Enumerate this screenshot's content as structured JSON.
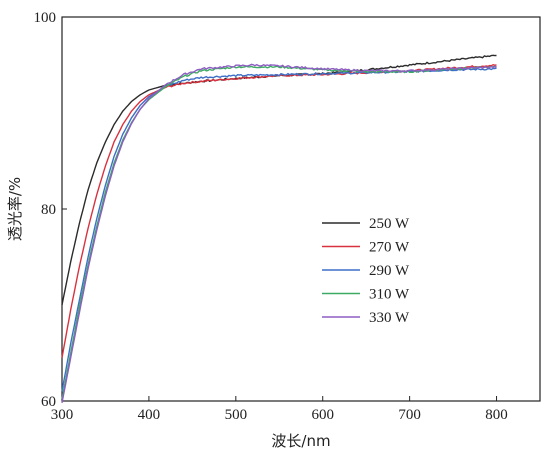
{
  "chart_data": {
    "type": "line",
    "xlabel": "波长/nm",
    "ylabel": "透光率/%",
    "xlim": [
      300,
      850
    ],
    "ylim": [
      60,
      100
    ],
    "xticks": [
      300,
      400,
      500,
      600,
      700,
      800
    ],
    "yticks": [
      60,
      80,
      100
    ],
    "grid": false,
    "legend_position": "center-right",
    "series": [
      {
        "name": "250 W",
        "color": "#2b2b2b",
        "x": [
          300,
          310,
          320,
          330,
          340,
          350,
          360,
          370,
          380,
          390,
          400,
          420,
          440,
          460,
          500,
          550,
          600,
          650,
          700,
          750,
          800
        ],
        "y": [
          70.0,
          74.5,
          78.5,
          82.0,
          84.8,
          87.0,
          88.8,
          90.2,
          91.2,
          91.9,
          92.4,
          92.9,
          93.1,
          93.3,
          93.6,
          93.9,
          94.1,
          94.5,
          95.0,
          95.5,
          96.0
        ]
      },
      {
        "name": "270 W",
        "color": "#d9323f",
        "x": [
          300,
          310,
          320,
          330,
          340,
          350,
          360,
          370,
          380,
          390,
          400,
          420,
          440,
          460,
          500,
          550,
          600,
          650,
          700,
          750,
          800
        ],
        "y": [
          64.5,
          69.5,
          74.0,
          78.0,
          81.5,
          84.5,
          87.0,
          88.8,
          90.2,
          91.2,
          91.9,
          92.7,
          93.1,
          93.3,
          93.6,
          93.9,
          94.0,
          94.2,
          94.4,
          94.7,
          95.0
        ]
      },
      {
        "name": "290 W",
        "color": "#3d6fc7",
        "x": [
          300,
          310,
          320,
          330,
          340,
          350,
          360,
          370,
          380,
          390,
          400,
          420,
          440,
          460,
          500,
          550,
          600,
          650,
          700,
          750,
          800
        ],
        "y": [
          61.0,
          66.0,
          70.5,
          75.0,
          79.0,
          82.5,
          85.5,
          87.8,
          89.5,
          90.8,
          91.7,
          92.8,
          93.4,
          93.7,
          93.9,
          94.0,
          94.1,
          94.2,
          94.3,
          94.5,
          94.6
        ]
      },
      {
        "name": "310 W",
        "color": "#3caa62",
        "x": [
          300,
          310,
          320,
          330,
          340,
          350,
          360,
          370,
          380,
          390,
          400,
          420,
          440,
          460,
          500,
          550,
          600,
          650,
          700,
          750,
          800
        ],
        "y": [
          60.2,
          65.0,
          69.8,
          74.2,
          78.2,
          81.8,
          84.8,
          87.2,
          89.0,
          90.4,
          91.4,
          92.8,
          93.8,
          94.4,
          94.8,
          94.8,
          94.5,
          94.3,
          94.3,
          94.6,
          94.8
        ]
      },
      {
        "name": "330 W",
        "color": "#8e5dc2",
        "x": [
          300,
          310,
          320,
          330,
          340,
          350,
          360,
          370,
          380,
          390,
          400,
          420,
          440,
          460,
          500,
          520,
          550,
          600,
          650,
          700,
          750,
          800
        ],
        "y": [
          59.8,
          64.5,
          69.2,
          73.8,
          77.8,
          81.4,
          84.5,
          87.0,
          88.9,
          90.4,
          91.5,
          93.0,
          94.0,
          94.6,
          94.9,
          95.0,
          94.9,
          94.6,
          94.4,
          94.4,
          94.6,
          94.8
        ]
      }
    ]
  }
}
